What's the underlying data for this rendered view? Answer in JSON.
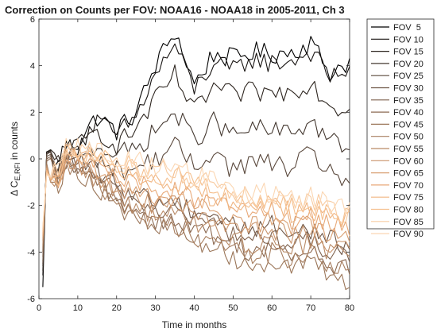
{
  "chart_data": {
    "type": "line",
    "title": "Correction on Counts per FOV: NOAA16 - NOAA18 in 2005-2011, Ch 3",
    "xlabel": "Time in months",
    "ylabel_main": "Δ C",
    "ylabel_sub": "E,RFI",
    "ylabel_tail": " in counts",
    "xlim": [
      0,
      80
    ],
    "ylim": [
      -6,
      6
    ],
    "xticks": [
      0,
      10,
      20,
      30,
      40,
      50,
      60,
      70,
      80
    ],
    "yticks": [
      -6,
      -4,
      -2,
      0,
      2,
      4,
      6
    ],
    "grid": false,
    "legend_position": "outside-right",
    "x_knots": [
      1,
      2,
      5,
      7,
      10,
      15,
      20,
      25,
      30,
      35,
      40,
      45,
      50,
      55,
      60,
      65,
      70,
      75,
      80
    ],
    "series": [
      {
        "name": "FOV  5",
        "color": "#000000",
        "values": [
          -5.5,
          0.3,
          -0.3,
          0.5,
          0.7,
          1.8,
          1.2,
          2.0,
          4.0,
          5.5,
          3.2,
          4.5,
          4.3,
          4.6,
          4.5,
          4.6,
          5.0,
          3.7,
          4.2
        ]
      },
      {
        "name": "FOV 10",
        "color": "#171311",
        "values": [
          -5.0,
          0.3,
          -0.2,
          0.5,
          0.6,
          1.6,
          1.0,
          1.8,
          3.6,
          4.9,
          3.0,
          4.1,
          3.8,
          4.3,
          4.1,
          4.2,
          4.6,
          3.5,
          3.9
        ]
      },
      {
        "name": "FOV 15",
        "color": "#2e2620",
        "values": [
          -4.8,
          0.3,
          -0.2,
          0.4,
          0.5,
          1.2,
          0.6,
          1.3,
          2.5,
          3.6,
          2.0,
          3.1,
          2.7,
          2.9,
          2.8,
          2.9,
          3.3,
          2.3,
          2.1
        ]
      },
      {
        "name": "FOV 20",
        "color": "#443830",
        "values": [
          -4.6,
          0.2,
          -0.3,
          0.3,
          0.3,
          0.6,
          0.2,
          0.4,
          1.2,
          2.0,
          0.8,
          1.6,
          1.0,
          1.3,
          1.2,
          1.1,
          1.6,
          0.8,
          0.4
        ]
      },
      {
        "name": "FOV 25",
        "color": "#5a483c",
        "values": [
          -4.5,
          0.2,
          -0.5,
          0.1,
          0.0,
          0.0,
          -0.5,
          -0.4,
          0.0,
          0.6,
          -0.4,
          0.4,
          -0.5,
          -0.1,
          -0.2,
          -0.4,
          0.2,
          -0.5,
          -1.0
        ]
      },
      {
        "name": "FOV 30",
        "color": "#6e5646",
        "values": [
          -4.4,
          0.1,
          -0.7,
          0.0,
          -0.2,
          -0.5,
          -1.2,
          -1.4,
          -1.8,
          -1.8,
          -2.2,
          -2.4,
          -2.8,
          -3.0,
          -2.8,
          -3.2,
          -3.0,
          -3.5,
          -3.8
        ]
      },
      {
        "name": "FOV 35",
        "color": "#7f624e",
        "values": [
          -4.2,
          0.0,
          -0.9,
          -0.1,
          -0.3,
          -0.8,
          -1.5,
          -1.8,
          -2.2,
          -2.2,
          -2.6,
          -2.8,
          -3.2,
          -3.5,
          -3.3,
          -3.7,
          -3.5,
          -4.0,
          -4.3
        ]
      },
      {
        "name": "FOV 40",
        "color": "#8c6a52",
        "values": [
          -4.0,
          -0.1,
          -1.0,
          -0.2,
          -0.4,
          -1.0,
          -1.7,
          -2.2,
          -2.6,
          -2.6,
          -3.0,
          -3.3,
          -3.6,
          -4.0,
          -3.8,
          -4.2,
          -4.0,
          -4.5,
          -4.8
        ]
      },
      {
        "name": "FOV 45",
        "color": "#9a7558",
        "values": [
          -3.9,
          -0.2,
          -1.1,
          -0.3,
          -0.5,
          -1.2,
          -2.0,
          -2.6,
          -3.0,
          -3.0,
          -3.5,
          -3.8,
          -4.2,
          -4.6,
          -4.3,
          -4.7,
          -4.5,
          -5.0,
          -5.3
        ]
      },
      {
        "name": "FOV 50",
        "color": "#a87f60",
        "values": [
          -3.8,
          -0.3,
          -1.2,
          -0.2,
          -0.4,
          -1.1,
          -1.8,
          -2.3,
          -2.8,
          -2.8,
          -3.3,
          -3.5,
          -3.9,
          -4.2,
          -4.0,
          -4.3,
          -4.1,
          -4.6,
          -4.5
        ]
      },
      {
        "name": "FOV 55",
        "color": "#b98a66",
        "values": [
          -3.7,
          -0.3,
          -1.2,
          -0.1,
          -0.3,
          -0.9,
          -1.5,
          -2.0,
          -2.4,
          -2.4,
          -2.8,
          -3.0,
          -3.4,
          -3.7,
          -3.5,
          -3.8,
          -3.6,
          -4.0,
          -3.9
        ]
      },
      {
        "name": "FOV 60",
        "color": "#c9956d",
        "values": [
          -3.5,
          -0.4,
          -1.1,
          0.0,
          -0.2,
          -0.7,
          -1.2,
          -1.6,
          -2.0,
          -2.0,
          -2.4,
          -2.6,
          -2.9,
          -3.2,
          -3.0,
          -3.3,
          -3.2,
          -3.6,
          -3.5
        ]
      },
      {
        "name": "FOV 65",
        "color": "#d9a073",
        "values": [
          -3.4,
          -0.4,
          -1.0,
          0.1,
          0.0,
          -0.5,
          -1.0,
          -1.3,
          -1.6,
          -1.6,
          -2.0,
          -2.2,
          -2.5,
          -2.8,
          -2.6,
          -2.9,
          -2.8,
          -3.2,
          -3.2
        ]
      },
      {
        "name": "FOV 70",
        "color": "#e8a978",
        "values": [
          -3.3,
          -0.5,
          -0.9,
          0.2,
          0.1,
          -0.3,
          -0.8,
          -1.0,
          -1.3,
          -1.3,
          -1.7,
          -1.9,
          -2.2,
          -2.5,
          -2.3,
          -2.6,
          -2.5,
          -2.9,
          -2.9
        ]
      },
      {
        "name": "FOV 75",
        "color": "#f0b582",
        "values": [
          -3.2,
          -0.5,
          -0.8,
          0.3,
          0.2,
          -0.1,
          -0.5,
          -0.7,
          -1.0,
          -1.0,
          -1.4,
          -1.6,
          -1.9,
          -2.2,
          -2.0,
          -2.3,
          -2.2,
          -2.6,
          -2.7
        ]
      },
      {
        "name": "FOV 80",
        "color": "#f5c08f",
        "values": [
          -3.1,
          -0.6,
          -0.7,
          0.4,
          0.3,
          0.1,
          -0.3,
          -0.5,
          -0.8,
          -0.7,
          -1.1,
          -1.3,
          -1.6,
          -1.9,
          -1.8,
          -2.1,
          -2.0,
          -2.4,
          -2.6
        ]
      },
      {
        "name": "FOV 85",
        "color": "#f8cba0",
        "values": [
          -3.0,
          -0.6,
          -0.6,
          0.5,
          0.4,
          0.2,
          -0.1,
          -0.3,
          -0.5,
          -0.5,
          -0.9,
          -1.1,
          -1.4,
          -1.7,
          -1.6,
          -1.9,
          -1.8,
          -2.2,
          -2.4
        ]
      },
      {
        "name": "FOV 90",
        "color": "#fbd6b2",
        "values": [
          -2.9,
          -0.7,
          -0.5,
          0.6,
          0.5,
          0.3,
          0.0,
          -0.1,
          -0.3,
          -0.3,
          -0.7,
          -0.9,
          -1.2,
          -1.5,
          -1.4,
          -1.7,
          -1.6,
          -2.0,
          -2.2
        ]
      }
    ]
  }
}
